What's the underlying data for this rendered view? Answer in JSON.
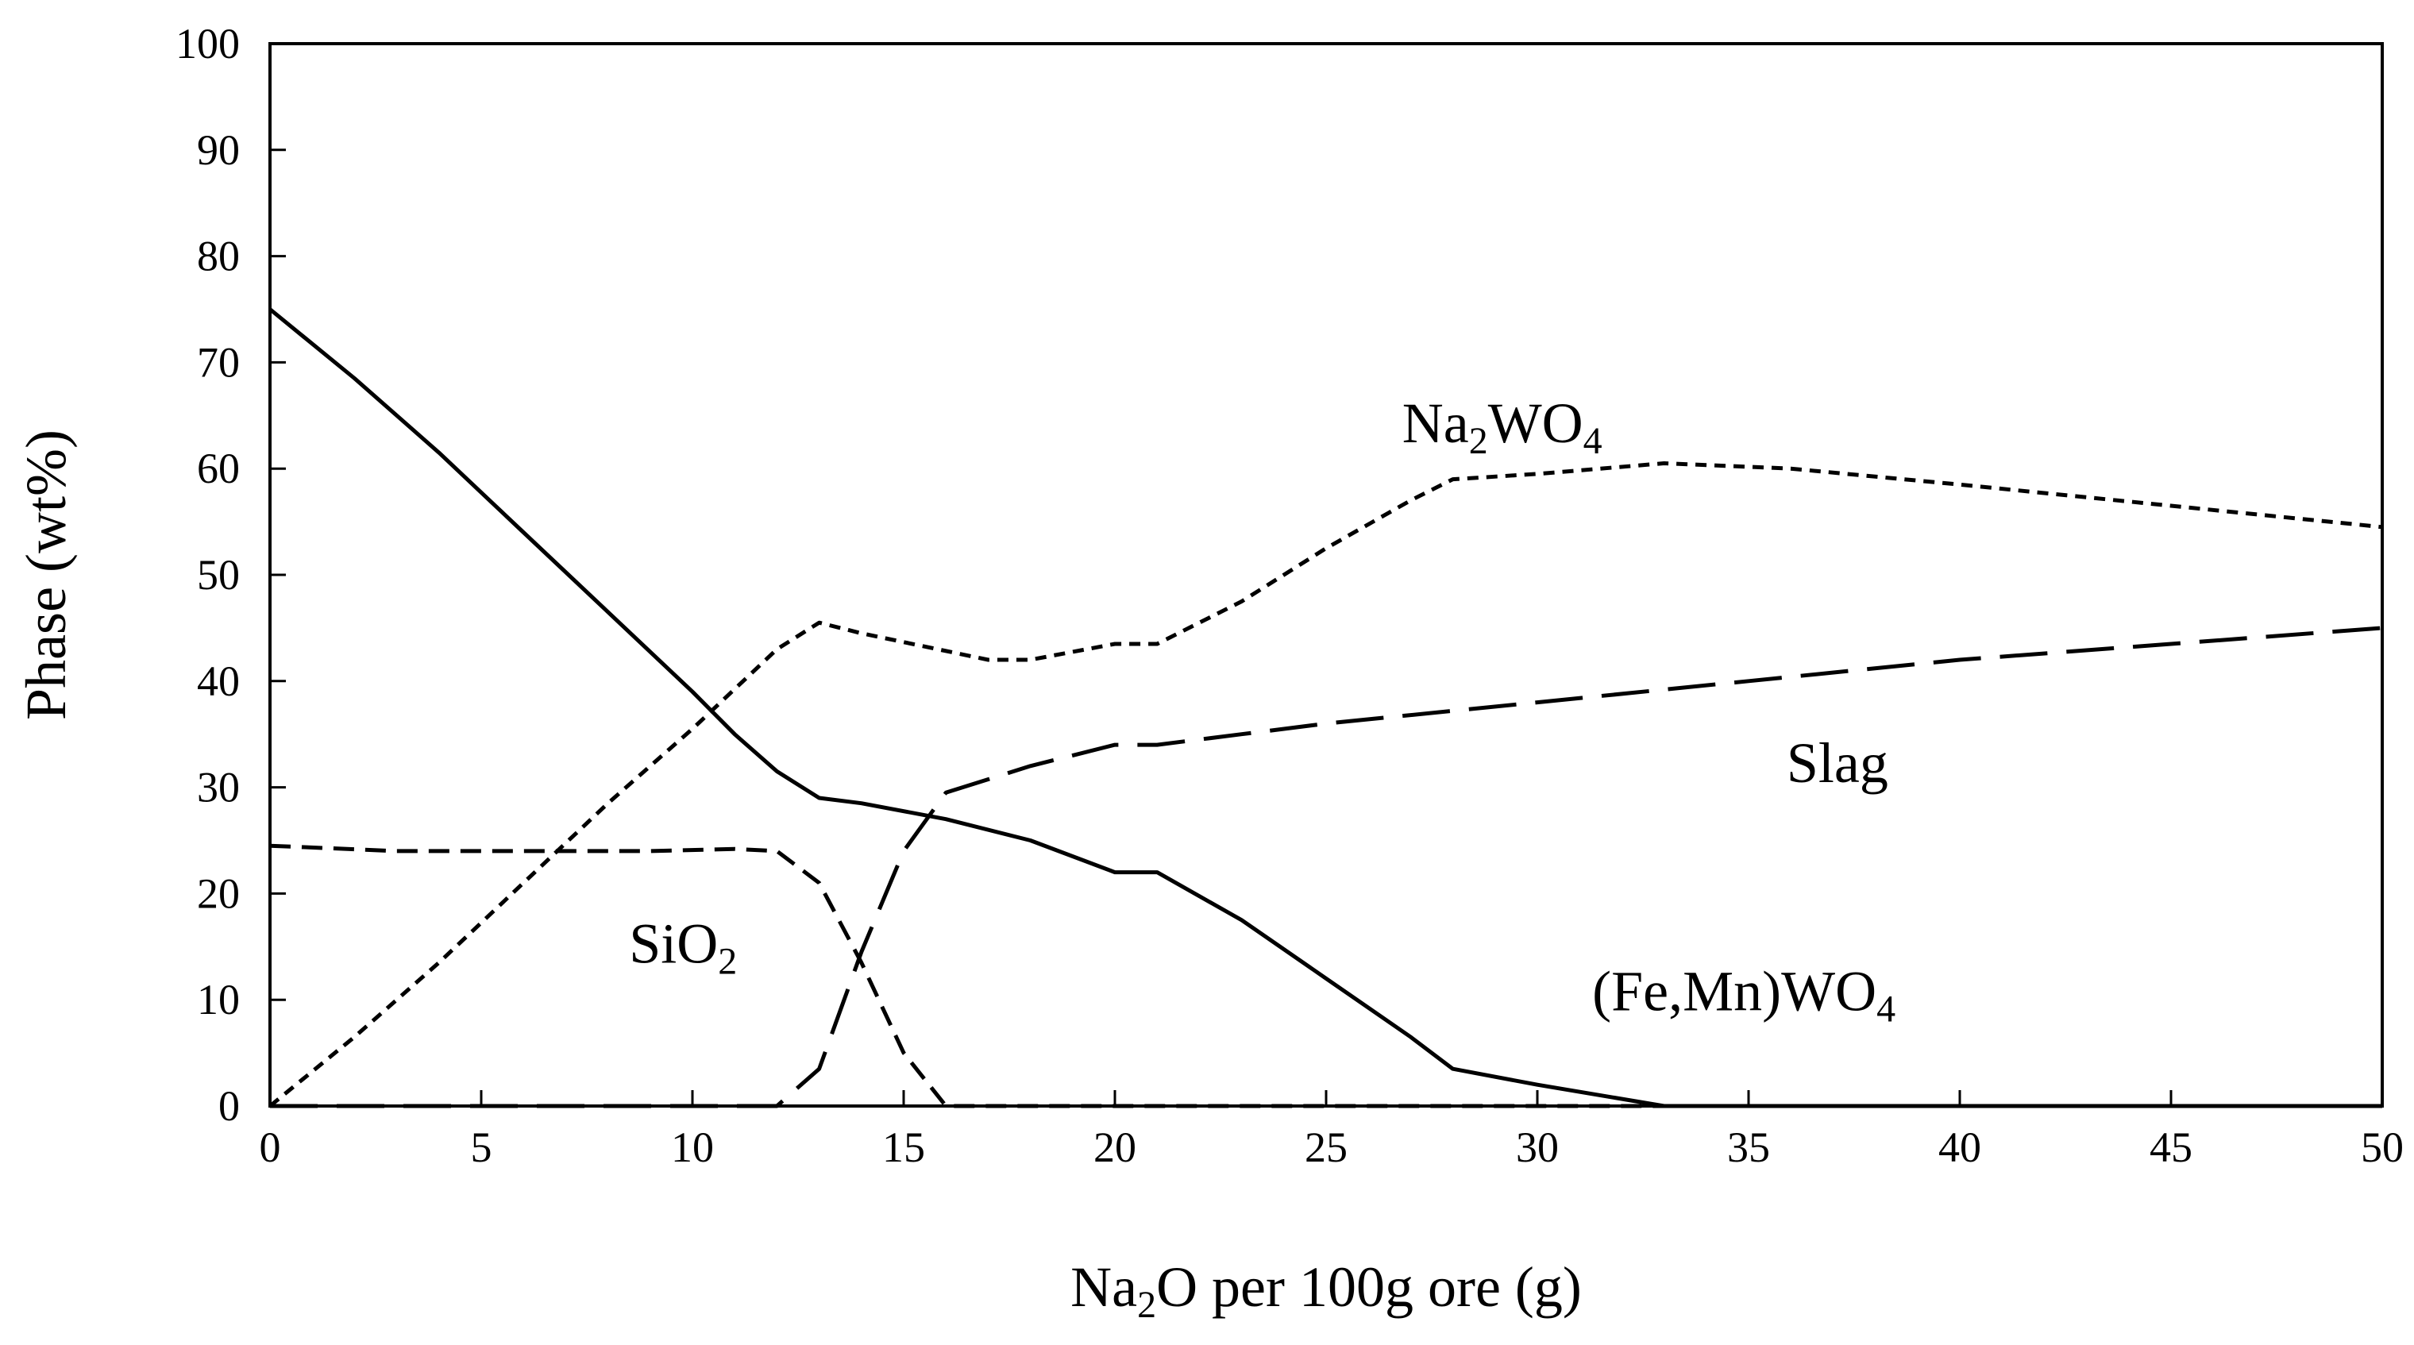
{
  "chart_data": {
    "type": "line",
    "title": "",
    "xlabel": {
      "pre": "Na",
      "sub": "2",
      "post": "O per 100g ore (g)"
    },
    "ylabel": "Phase (wt%)",
    "xlim": [
      0,
      50
    ],
    "ylim": [
      0,
      100
    ],
    "x_ticks": [
      0,
      5,
      10,
      15,
      20,
      25,
      30,
      35,
      40,
      45,
      50
    ],
    "y_ticks": [
      0,
      10,
      20,
      30,
      40,
      50,
      60,
      70,
      80,
      90,
      100
    ],
    "grid": false,
    "series": [
      {
        "id": "fe-mn-wo4",
        "name": "(Fe,Mn)WO4",
        "label": {
          "pre": "(Fe,Mn)WO",
          "sub": "4",
          "post": ""
        },
        "label_at": [
          31.3,
          9.0
        ],
        "style": "solid",
        "x": [
          0,
          2,
          4,
          6,
          8,
          10,
          11,
          12,
          13,
          14,
          16,
          18,
          20,
          21,
          23,
          25,
          27,
          28,
          30,
          33,
          50
        ],
        "y": [
          75,
          68.5,
          61.5,
          54,
          46.5,
          39,
          35,
          31.5,
          29,
          28.5,
          27,
          25,
          22,
          22,
          17.5,
          12,
          6.5,
          3.5,
          2,
          0,
          0
        ]
      },
      {
        "id": "na2wo4",
        "name": "Na2WO4",
        "label": {
          "pre": "Na",
          "sub": "2",
          "post": "WO",
          "sub2": "4"
        },
        "label_at": [
          26.8,
          62.5
        ],
        "style": "short-dash",
        "x": [
          0,
          2,
          4,
          6,
          8,
          10,
          12,
          13,
          14,
          17,
          18,
          20,
          21,
          23,
          25,
          27,
          28,
          30,
          33,
          36,
          40,
          45,
          50
        ],
        "y": [
          0,
          6.5,
          13.5,
          21,
          28.5,
          35.5,
          43,
          45.5,
          44.5,
          42,
          42,
          43.5,
          43.5,
          47.5,
          52.5,
          57,
          59,
          59.5,
          60.5,
          60,
          58.5,
          56.5,
          54.5
        ]
      },
      {
        "id": "slag",
        "name": "Slag",
        "label": {
          "pre": "Slag",
          "sub": "",
          "post": ""
        },
        "label_at": [
          35.9,
          30.5
        ],
        "style": "long-dash",
        "x": [
          0,
          12,
          13,
          14,
          15,
          16,
          18,
          20,
          21,
          23,
          25,
          30,
          35,
          40,
          45,
          50
        ],
        "y": [
          0,
          0,
          3.5,
          14.5,
          24,
          29.5,
          32,
          34,
          34,
          35,
          36,
          38,
          40,
          42,
          43.5,
          45
        ]
      },
      {
        "id": "sio2",
        "name": "SiO2",
        "label": {
          "pre": "SiO",
          "sub": "2",
          "post": ""
        },
        "label_at": [
          8.5,
          13.5
        ],
        "style": "medium-dash",
        "x": [
          0,
          3,
          6,
          9,
          11,
          12,
          13,
          14,
          15,
          16,
          20,
          30,
          40,
          50
        ],
        "y": [
          24.5,
          24,
          24,
          24,
          24.2,
          24,
          21,
          13.5,
          5,
          0,
          0,
          0,
          0,
          0
        ]
      }
    ]
  }
}
